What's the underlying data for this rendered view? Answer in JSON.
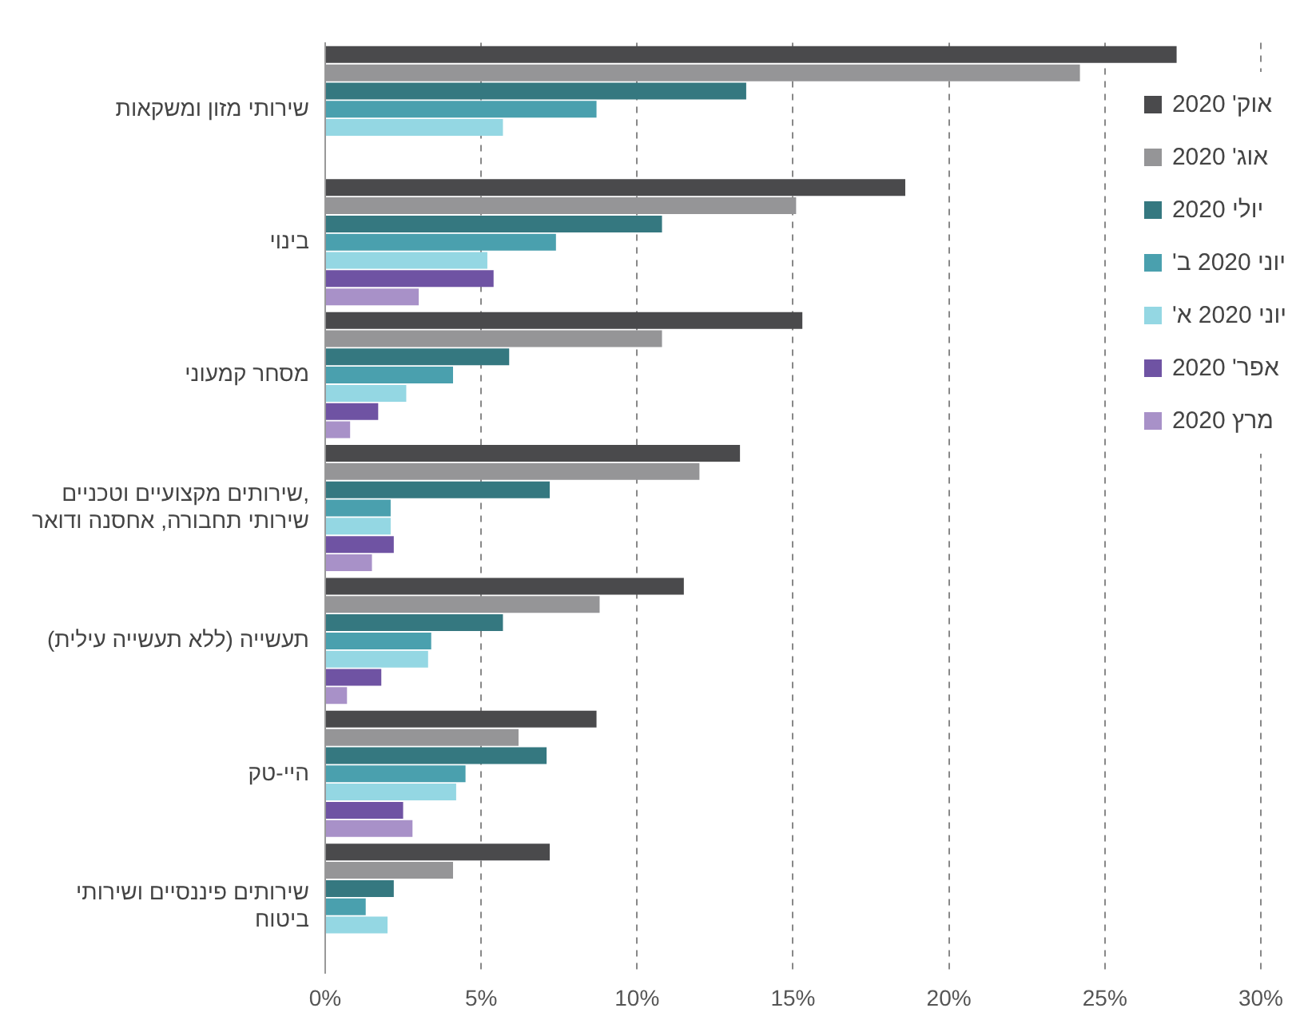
{
  "chart_data": {
    "type": "bar",
    "orientation": "horizontal",
    "categories": [
      "שירותי מזון ומשקאות",
      "בינוי",
      "מסחר קמעוני",
      "שירותים מקצועיים וטכניים, שירותי תחבורה, אחסנה ודואר",
      "תעשייה (ללא תעשייה עילית)",
      "היי-טק",
      "שירותים פיננסיים ושירותי ביטוח"
    ],
    "series": [
      {
        "name": "אוק' 2020",
        "color": "#4a4a4c",
        "values": [
          27.3,
          18.6,
          15.3,
          13.3,
          11.5,
          8.7,
          7.2
        ]
      },
      {
        "name": "אוג' 2020",
        "color": "#959597",
        "values": [
          24.2,
          15.1,
          10.8,
          12.0,
          8.8,
          6.2,
          4.1
        ]
      },
      {
        "name": "יולי 2020",
        "color": "#357880",
        "values": [
          13.5,
          10.8,
          5.9,
          7.2,
          5.7,
          7.1,
          2.2
        ]
      },
      {
        "name": "יוני 2020 ב'",
        "color": "#4aa0ae",
        "values": [
          8.7,
          7.4,
          4.1,
          2.1,
          3.4,
          4.5,
          1.3
        ]
      },
      {
        "name": "יוני 2020 א'",
        "color": "#94d7e3",
        "values": [
          5.7,
          5.2,
          2.6,
          2.1,
          3.3,
          4.2,
          2.0
        ]
      },
      {
        "name": "אפר' 2020",
        "color": "#6f53a3",
        "values": [
          null,
          5.4,
          1.7,
          2.2,
          1.8,
          2.5,
          null
        ]
      },
      {
        "name": "מרץ 2020",
        "color": "#a891c8",
        "values": [
          null,
          3.0,
          0.8,
          1.5,
          0.7,
          2.8,
          null
        ]
      }
    ],
    "xlim": [
      0,
      30
    ],
    "xticks": [
      {
        "value": 0,
        "label": "0%"
      },
      {
        "value": 5,
        "label": "5%"
      },
      {
        "value": 10,
        "label": "10%"
      },
      {
        "value": 15,
        "label": "15%"
      },
      {
        "value": 20,
        "label": "20%"
      },
      {
        "value": 25,
        "label": "25%"
      },
      {
        "value": 30,
        "label": "30%"
      }
    ],
    "grid": "x",
    "legend": "top right"
  }
}
